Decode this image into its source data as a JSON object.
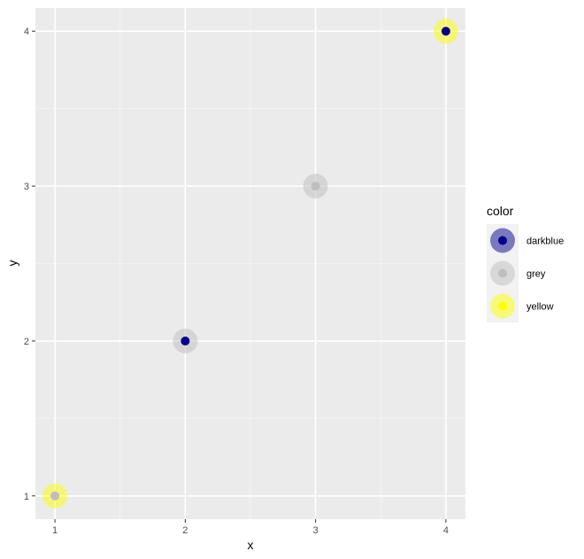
{
  "chart_data": {
    "type": "scatter",
    "xlabel": "x",
    "ylabel": "y",
    "xlim": [
      0.85,
      4.15
    ],
    "ylim": [
      0.85,
      4.15
    ],
    "x_ticks": [
      1,
      2,
      3,
      4
    ],
    "y_ticks": [
      1,
      2,
      3,
      4
    ],
    "grid": true,
    "legend": {
      "title": "color",
      "position": "right",
      "entries": [
        {
          "label": "darkblue",
          "color": "#00008b"
        },
        {
          "label": "grey",
          "color": "#bebebe"
        },
        {
          "label": "yellow",
          "color": "#ffff00"
        }
      ]
    },
    "points": [
      {
        "x": 1,
        "y": 1,
        "outer": "yellow",
        "inner": "grey"
      },
      {
        "x": 2,
        "y": 2,
        "outer": "grey",
        "inner": "darkblue"
      },
      {
        "x": 3,
        "y": 3,
        "outer": "grey",
        "inner": "grey"
      },
      {
        "x": 4,
        "y": 4,
        "outer": "yellow",
        "inner": "darkblue"
      }
    ]
  },
  "colors": {
    "panel_background": "#ebebeb",
    "grid_major": "#ffffff",
    "grid_minor": "#f5f5f5",
    "legend_key_background": "#f2f2f2",
    "darkblue": "#00008b",
    "grey": "#bebebe",
    "yellow": "#ffff00"
  }
}
